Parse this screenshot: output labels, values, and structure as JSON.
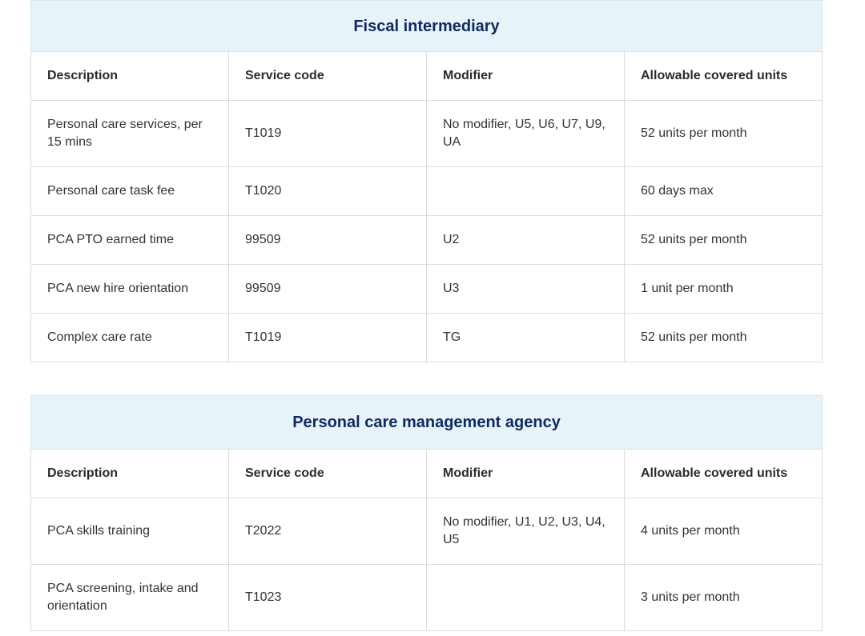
{
  "tables": [
    {
      "title": "Fiscal intermediary",
      "headers": [
        "Description",
        "Service code",
        "Modifier",
        "Allowable covered units"
      ],
      "rows": [
        [
          "Personal care services, per 15 mins",
          "T1019",
          "No modifier, U5, U6, U7, U9, UA",
          "52 units per month"
        ],
        [
          "Personal care task fee",
          "T1020",
          "",
          "60 days max"
        ],
        [
          "PCA PTO earned time",
          "99509",
          "U2",
          "52 units per month"
        ],
        [
          "PCA new hire orientation",
          "99509",
          "U3",
          "1 unit per month"
        ],
        [
          "Complex care rate",
          "T1019",
          "TG",
          "52 units per month"
        ]
      ]
    },
    {
      "title": "Personal care management agency",
      "headers": [
        "Description",
        "Service code",
        "Modifier",
        "Allowable covered units"
      ],
      "rows": [
        [
          "PCA skills training",
          "T2022",
          "No modifier, U1, U2, U3, U4, U5",
          "4 units per month"
        ],
        [
          "PCA screening, intake and orientation",
          "T1023",
          "",
          "3 units per month"
        ]
      ]
    }
  ],
  "colors": {
    "title_background": "#e6f4f9",
    "title_text": "#10295d",
    "border": "#dcdcdc",
    "body_text": "#333333"
  }
}
